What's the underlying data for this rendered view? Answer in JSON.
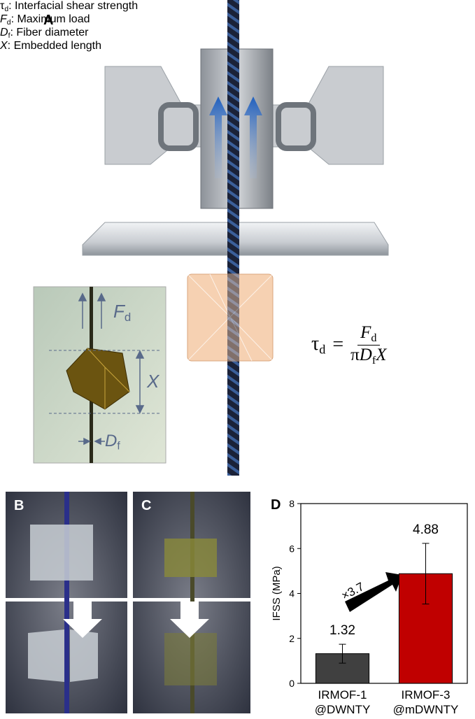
{
  "panel_a": {
    "label": "A",
    "inset": {
      "force": {
        "symbol": "F",
        "sub": "d"
      },
      "length": "X",
      "diameter": {
        "symbol": "D",
        "sub": "f"
      }
    },
    "equation": {
      "lhs": {
        "symbol": "τ",
        "sub": "d"
      },
      "equals": "=",
      "numerator": {
        "symbol": "F",
        "sub": "d"
      },
      "denominator": {
        "prefix": "π",
        "symbol": "D",
        "sub": "f",
        "suffix": "X"
      }
    },
    "legend": [
      {
        "symbol": "τ",
        "sub": "d",
        "text": ": Interfacial shear strength"
      },
      {
        "symbol": "F",
        "sub": "d",
        "text": ": Maximum load"
      },
      {
        "symbol": "D",
        "sub": "f",
        "text": ": Fiber diameter"
      },
      {
        "symbol": "X",
        "text": ": Embedded length"
      }
    ]
  },
  "panel_b": {
    "label": "B"
  },
  "panel_c": {
    "label": "C"
  },
  "chart_data": {
    "type": "bar",
    "panel_label": "D",
    "categories": [
      "IRMOF-1\n@DWNTY",
      "IRMOF-3\n@mDWNTY"
    ],
    "values": [
      1.32,
      4.88
    ],
    "errors": [
      0.42,
      1.35
    ],
    "colors": [
      "#404040",
      "#c00000"
    ],
    "ylabel": "IFSS (MPa)",
    "ylim": [
      0,
      8
    ],
    "yticks": [
      0,
      2,
      4,
      6,
      8
    ],
    "annotation": "×3.7"
  }
}
